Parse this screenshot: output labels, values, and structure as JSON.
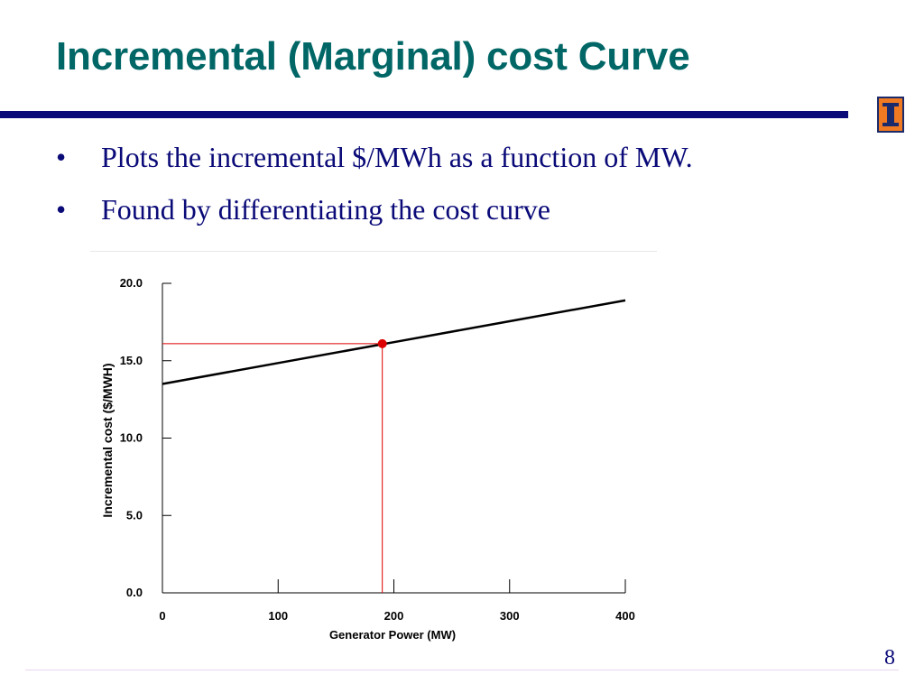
{
  "slide": {
    "title": "Incremental (Marginal) cost Curve",
    "bullets": [
      "Plots the incremental $/MWh as a function of MW.",
      "Found by differentiating the cost curve"
    ],
    "bullet_symbol": "•",
    "page_number": "8"
  },
  "colors": {
    "title": "#006666",
    "rule": "#0a0a78",
    "bullet_text": "#0a0a78",
    "curve": "#000000",
    "marker": "#dd0000"
  },
  "chart_data": {
    "type": "line",
    "xlabel": "Generator Power (MW)",
    "ylabel": "Incremental cost ($/MWH)",
    "xlim": [
      0,
      400
    ],
    "ylim": [
      0,
      20
    ],
    "x_ticks": [
      "0",
      "100",
      "200",
      "300",
      "400"
    ],
    "y_ticks": [
      "0.0",
      "5.0",
      "10.0",
      "15.0",
      "20.0"
    ],
    "grid": false,
    "series": [
      {
        "x": [
          0,
          100,
          200,
          300,
          400
        ],
        "values": [
          13.5,
          14.85,
          16.2,
          17.55,
          18.9
        ]
      }
    ],
    "operating_point": {
      "x": 190,
      "y": 16.1
    }
  }
}
